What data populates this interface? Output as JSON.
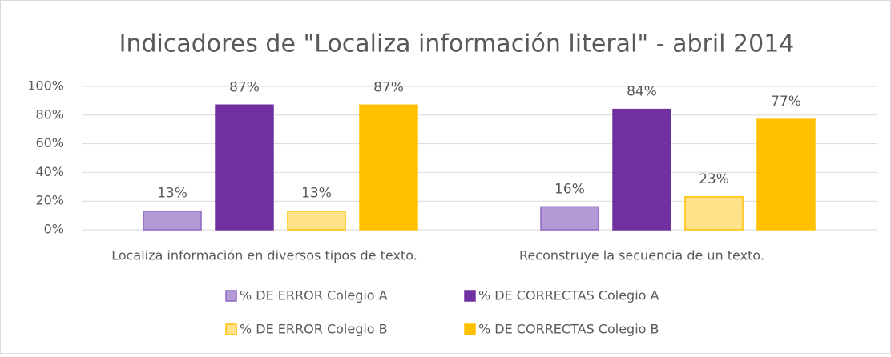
{
  "chart_data": {
    "type": "bar",
    "title": "Indicadores de \"Localiza información literal\" - abril 2014",
    "categories": [
      "Localiza información en diversos tipos de texto.",
      "Reconstruye la secuencia de un texto."
    ],
    "series": [
      {
        "name": "% DE ERROR Colegio A",
        "color": "#b39ad6",
        "edgecolor": "#8e67c4",
        "values": [
          13,
          16
        ],
        "value_labels": [
          "13%",
          "16%"
        ]
      },
      {
        "name": "% DE CORRECTAS Colegio A",
        "color": "#7030a0",
        "edgecolor": "#7030a0",
        "values": [
          87,
          84
        ],
        "value_labels": [
          "87%",
          "84%"
        ]
      },
      {
        "name": "% DE ERROR Colegio B",
        "color": "#ffe28a",
        "edgecolor": "#ffc000",
        "values": [
          13,
          23
        ],
        "value_labels": [
          "13%",
          "23%"
        ]
      },
      {
        "name": "% DE CORRECTAS Colegio B",
        "color": "#ffc000",
        "edgecolor": "#ffc000",
        "values": [
          87,
          77
        ],
        "value_labels": [
          "87%",
          "77%"
        ]
      }
    ],
    "ylim": [
      0,
      100
    ],
    "yticks": [
      {
        "value": 0,
        "label": "0%"
      },
      {
        "value": 20,
        "label": "20%"
      },
      {
        "value": 40,
        "label": "40%"
      },
      {
        "value": 60,
        "label": "60%"
      },
      {
        "value": 80,
        "label": "80%"
      },
      {
        "value": 100,
        "label": "100%"
      }
    ],
    "grid": true,
    "legend": "bottom"
  }
}
